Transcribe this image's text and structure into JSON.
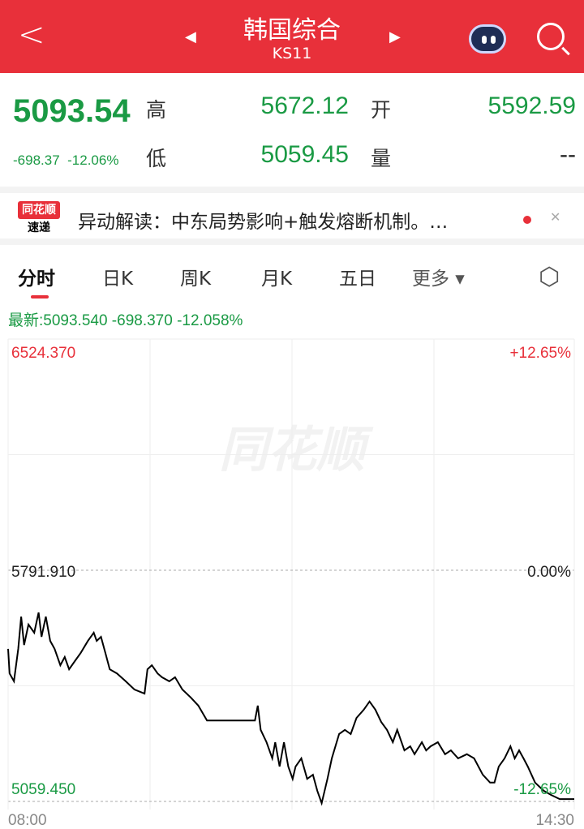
{
  "header": {
    "back_icon": "chevron-left-icon",
    "title": "韩国综合",
    "code": "KS11",
    "prev_icon": "triangle-left-icon",
    "next_icon": "triangle-right-icon",
    "assistant_icon": "robot-icon",
    "search_icon": "search-icon"
  },
  "quote": {
    "price": "5093.54",
    "change": "-698.37",
    "change_pct": "-12.06%",
    "high_label": "高",
    "high": "5672.12",
    "low_label": "低",
    "low": "5059.45",
    "open_label": "开",
    "open": "5592.59",
    "volume_label": "量",
    "volume": "--",
    "color": "#1a9a44"
  },
  "news": {
    "logo_top": "同花顺",
    "logo_bottom": "速递",
    "text": "异动解读：中东局势影响+触发熔断机制。…"
  },
  "tabs": [
    {
      "label": "分时",
      "active": true
    },
    {
      "label": "日K"
    },
    {
      "label": "周K"
    },
    {
      "label": "月K"
    },
    {
      "label": "五日"
    },
    {
      "label": "更多 ▾"
    }
  ],
  "settings_icon": "hexagon-settings-icon",
  "latest": "最新:5093.540 -698.370 -12.058%",
  "watermark": "同花顺",
  "chart_data": {
    "type": "line",
    "y_top": "6524.370",
    "y_mid": "5791.910",
    "y_bottom": "5059.450",
    "pct_top": "+12.65%",
    "pct_mid": "0.00%",
    "pct_bottom": "-12.65%",
    "ylim": [
      5059.45,
      6524.37
    ],
    "x_start": "08:00",
    "x_end": "14:30",
    "up_color": "#e8303a",
    "down_color": "#1a9a44",
    "points": [
      [
        "08:00",
        5543
      ],
      [
        "08:01",
        5465
      ],
      [
        "08:04",
        5440
      ],
      [
        "08:07",
        5543
      ],
      [
        "08:09",
        5645
      ],
      [
        "08:11",
        5555
      ],
      [
        "08:14",
        5620
      ],
      [
        "08:18",
        5594
      ],
      [
        "08:21",
        5658
      ],
      [
        "08:23",
        5581
      ],
      [
        "08:26",
        5645
      ],
      [
        "08:29",
        5568
      ],
      [
        "08:32",
        5543
      ],
      [
        "08:36",
        5491
      ],
      [
        "08:39",
        5517
      ],
      [
        "08:42",
        5478
      ],
      [
        "08:46",
        5504
      ],
      [
        "08:50",
        5530
      ],
      [
        "08:55",
        5568
      ],
      [
        "08:59",
        5594
      ],
      [
        "09:01",
        5568
      ],
      [
        "09:04",
        5581
      ],
      [
        "09:07",
        5530
      ],
      [
        "09:10",
        5478
      ],
      [
        "09:15",
        5465
      ],
      [
        "09:21",
        5440
      ],
      [
        "09:27",
        5414
      ],
      [
        "09:34",
        5401
      ],
      [
        "09:36",
        5478
      ],
      [
        "09:39",
        5491
      ],
      [
        "09:43",
        5465
      ],
      [
        "09:46",
        5453
      ],
      [
        "09:51",
        5440
      ],
      [
        "09:55",
        5453
      ],
      [
        "10:00",
        5414
      ],
      [
        "10:06",
        5388
      ],
      [
        "10:11",
        5363
      ],
      [
        "10:17",
        5316
      ],
      [
        "10:50",
        5316
      ],
      [
        "10:52",
        5363
      ],
      [
        "10:54",
        5286
      ],
      [
        "10:58",
        5247
      ],
      [
        "11:02",
        5196
      ],
      [
        "11:04",
        5247
      ],
      [
        "11:07",
        5170
      ],
      [
        "11:10",
        5247
      ],
      [
        "11:13",
        5170
      ],
      [
        "11:16",
        5131
      ],
      [
        "11:18",
        5170
      ],
      [
        "11:22",
        5196
      ],
      [
        "11:26",
        5131
      ],
      [
        "11:30",
        5144
      ],
      [
        "11:33",
        5093
      ],
      [
        "11:36",
        5054
      ],
      [
        "11:40",
        5131
      ],
      [
        "11:43",
        5196
      ],
      [
        "11:48",
        5273
      ],
      [
        "11:52",
        5286
      ],
      [
        "11:56",
        5273
      ],
      [
        "12:00",
        5324
      ],
      [
        "12:05",
        5350
      ],
      [
        "12:09",
        5376
      ],
      [
        "12:13",
        5350
      ],
      [
        "12:17",
        5311
      ],
      [
        "12:21",
        5286
      ],
      [
        "12:25",
        5247
      ],
      [
        "12:28",
        5286
      ],
      [
        "12:33",
        5221
      ],
      [
        "12:37",
        5234
      ],
      [
        "12:40",
        5209
      ],
      [
        "12:45",
        5247
      ],
      [
        "12:48",
        5221
      ],
      [
        "12:51",
        5234
      ],
      [
        "12:56",
        5247
      ],
      [
        "13:01",
        5209
      ],
      [
        "13:05",
        5221
      ],
      [
        "13:10",
        5196
      ],
      [
        "13:16",
        5209
      ],
      [
        "13:21",
        5196
      ],
      [
        "13:27",
        5144
      ],
      [
        "13:32",
        5119
      ],
      [
        "13:35",
        5119
      ],
      [
        "13:38",
        5170
      ],
      [
        "13:42",
        5196
      ],
      [
        "13:46",
        5234
      ],
      [
        "13:49",
        5196
      ],
      [
        "13:52",
        5221
      ],
      [
        "13:55",
        5196
      ],
      [
        "13:58",
        5170
      ],
      [
        "14:03",
        5119
      ],
      [
        "14:09",
        5093
      ],
      [
        "14:14",
        5080
      ],
      [
        "14:20",
        5067
      ],
      [
        "14:30",
        5067
      ]
    ]
  }
}
